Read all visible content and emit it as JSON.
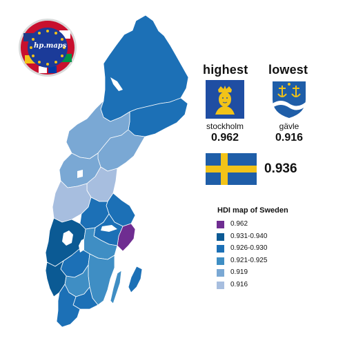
{
  "logo": {
    "text": "hp.maps"
  },
  "highest": {
    "heading": "highest",
    "city": "stockholm",
    "value": "0.962"
  },
  "lowest": {
    "heading": "lowest",
    "city": "gävle",
    "value": "0.916"
  },
  "national": {
    "value": "0.936",
    "flag": "sweden-flag"
  },
  "legend": {
    "title": "HDI map of Sweden",
    "items": [
      {
        "label": "0.962",
        "color": "#6f2d91"
      },
      {
        "label": "0.931-0.940",
        "color": "#0b5a94"
      },
      {
        "label": "0.926-0.930",
        "color": "#1c70b6"
      },
      {
        "label": "0.921-0.925",
        "color": "#3f8ec4"
      },
      {
        "label": "0.919",
        "color": "#7aa8d4"
      },
      {
        "label": "0.916",
        "color": "#a7bedf"
      }
    ]
  },
  "colors": {
    "sweden_blue": "#1f5ea8",
    "sweden_yellow": "#f2c318",
    "water": "#ffffff"
  }
}
